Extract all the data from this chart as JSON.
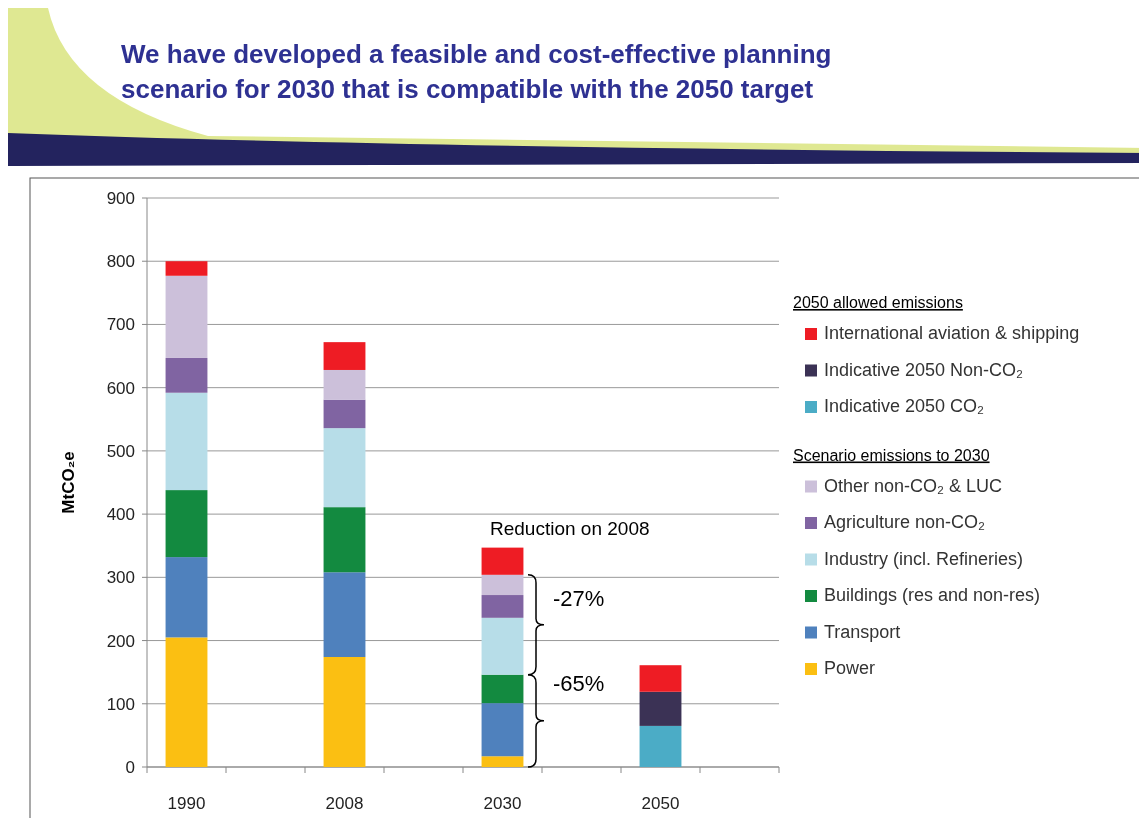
{
  "chart_data": {
    "type": "bar",
    "stacked": true,
    "title": "We have developed a feasible and cost-effective planning scenario for 2030 that is compatible with the 2050 target",
    "ylabel": "MtCO₂e",
    "categories": [
      "1990",
      null,
      "2008",
      null,
      "2030",
      null,
      "2050",
      null
    ],
    "series": [
      {
        "name": "Power",
        "color": "#fbbf12",
        "values": [
          205,
          null,
          174,
          null,
          17,
          null,
          null,
          null
        ]
      },
      {
        "name": "Transport",
        "color": "#4f81bd",
        "values": [
          127,
          null,
          134,
          null,
          84,
          null,
          null,
          null
        ]
      },
      {
        "name": "Buildings (res and non-res)",
        "color": "#138a40",
        "values": [
          106,
          null,
          103,
          null,
          45,
          null,
          null,
          null
        ]
      },
      {
        "name": "Industry (incl. Refineries)",
        "color": "#b7dde8",
        "values": [
          154,
          null,
          125,
          null,
          90,
          null,
          null,
          null
        ]
      },
      {
        "name": "Agriculture non-CO₂",
        "color": "#8064a2",
        "values": [
          55,
          null,
          45,
          null,
          36,
          null,
          null,
          null
        ]
      },
      {
        "name": "Other non-CO₂ & LUC",
        "color": "#ccc0da",
        "values": [
          130,
          null,
          47,
          null,
          32,
          null,
          null,
          null
        ]
      },
      {
        "name": "Indicative 2050 CO₂",
        "color": "#4bacc6",
        "values": [
          null,
          null,
          null,
          null,
          null,
          null,
          65,
          null
        ]
      },
      {
        "name": "Indicative 2050 Non-CO₂",
        "color": "#3b3255",
        "values": [
          null,
          null,
          null,
          null,
          null,
          null,
          54,
          null
        ]
      },
      {
        "name": "International aviation & shipping",
        "color": "#ee1c24",
        "values": [
          23,
          null,
          44,
          null,
          43,
          null,
          42,
          null
        ]
      }
    ],
    "ylim": [
      0,
      900
    ],
    "yticks": [
      0,
      100,
      200,
      300,
      400,
      500,
      600,
      700,
      800,
      900
    ],
    "grid": "y",
    "legend": "right",
    "annotations": [
      "2050 allowed emissions",
      "Scenario emissions to 2030",
      "Reduction on 2008",
      "-27%",
      "-65%"
    ]
  }
}
